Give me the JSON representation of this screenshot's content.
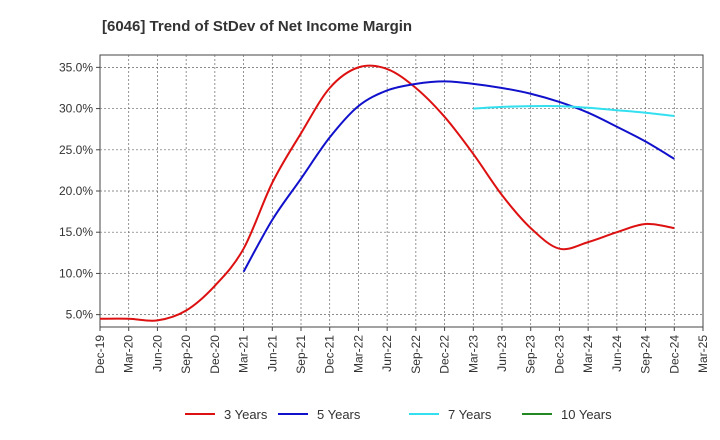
{
  "chart_data": {
    "type": "line",
    "title": "[6046]  Trend of StDev of Net Income Margin",
    "xlabel": "",
    "ylabel": "",
    "x_ticks": [
      "Dec-19",
      "Mar-20",
      "Jun-20",
      "Sep-20",
      "Dec-20",
      "Mar-21",
      "Jun-21",
      "Sep-21",
      "Dec-21",
      "Mar-22",
      "Jun-22",
      "Sep-22",
      "Dec-22",
      "Mar-23",
      "Jun-23",
      "Sep-23",
      "Dec-23",
      "Mar-24",
      "Jun-24",
      "Sep-24",
      "Dec-24",
      "Mar-25"
    ],
    "y_ticks": [
      "5.0%",
      "10.0%",
      "15.0%",
      "20.0%",
      "25.0%",
      "30.0%",
      "35.0%"
    ],
    "y_tick_values": [
      5,
      10,
      15,
      20,
      25,
      30,
      35
    ],
    "ylim": [
      3.5,
      36.5
    ],
    "grid": true,
    "legend_position": "bottom",
    "series": [
      {
        "name": "3 Years",
        "color": "#dd1111",
        "x": [
          "Dec-19",
          "Mar-20",
          "Jun-20",
          "Sep-20",
          "Dec-20",
          "Mar-21",
          "Jun-21",
          "Sep-21",
          "Dec-21",
          "Mar-22",
          "Jun-22",
          "Sep-22",
          "Dec-22",
          "Mar-23",
          "Jun-23",
          "Sep-23",
          "Dec-23",
          "Mar-24",
          "Jun-24",
          "Sep-24",
          "Dec-24"
        ],
        "values": [
          4.5,
          4.5,
          4.3,
          5.5,
          8.5,
          13.0,
          21.0,
          27.0,
          32.5,
          35.0,
          34.8,
          32.5,
          29.0,
          24.5,
          19.5,
          15.5,
          13.0,
          13.8,
          15.0,
          16.0,
          15.5
        ]
      },
      {
        "name": "5 Years",
        "color": "#1111cc",
        "x": [
          "Mar-21",
          "Jun-21",
          "Sep-21",
          "Dec-21",
          "Mar-22",
          "Jun-22",
          "Sep-22",
          "Dec-22",
          "Mar-23",
          "Jun-23",
          "Sep-23",
          "Dec-23",
          "Mar-24",
          "Jun-24",
          "Sep-24",
          "Dec-24"
        ],
        "values": [
          10.2,
          16.5,
          21.5,
          26.5,
          30.3,
          32.2,
          33.0,
          33.3,
          33.0,
          32.5,
          31.8,
          30.8,
          29.5,
          27.8,
          26.0,
          23.9
        ]
      },
      {
        "name": "7 Years",
        "color": "#33e0f0",
        "x": [
          "Mar-23",
          "Jun-23",
          "Sep-23",
          "Dec-23",
          "Mar-24",
          "Jun-24",
          "Sep-24",
          "Dec-24"
        ],
        "values": [
          30.0,
          30.2,
          30.3,
          30.3,
          30.1,
          29.8,
          29.5,
          29.1
        ]
      },
      {
        "name": "10 Years",
        "color": "#228822",
        "x": [],
        "values": []
      }
    ]
  }
}
